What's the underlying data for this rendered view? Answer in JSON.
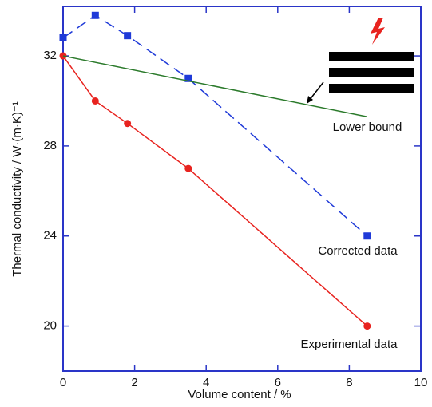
{
  "chart_data": {
    "type": "line",
    "xlabel": "Volume content / %",
    "ylabel": "Thermal conductivity / W·(m·K)⁻¹",
    "xlim": [
      0,
      10
    ],
    "xticks": [
      0,
      2,
      4,
      6,
      8,
      10
    ],
    "ylim": [
      18,
      34.2
    ],
    "yticks": [
      20,
      24,
      28,
      32
    ],
    "frame_color": "#2a35c8",
    "series": [
      {
        "name": "Experimental data",
        "color": "#e8231f",
        "marker": "circle",
        "dash": false,
        "x": [
          0,
          0.9,
          1.8,
          3.5,
          8.5
        ],
        "values": [
          32,
          30,
          29,
          27,
          20
        ]
      },
      {
        "name": "Corrected data",
        "color": "#1f3ad8",
        "marker": "square",
        "dash": true,
        "x": [
          0,
          0.9,
          1.8,
          3.5,
          8.5
        ],
        "values": [
          32.8,
          33.8,
          32.9,
          31,
          24
        ]
      },
      {
        "name": "Lower bound",
        "color": "#2b7a2b",
        "marker": "none",
        "dash": false,
        "x": [
          0,
          8.5
        ],
        "values": [
          32,
          29.3
        ]
      }
    ]
  }
}
